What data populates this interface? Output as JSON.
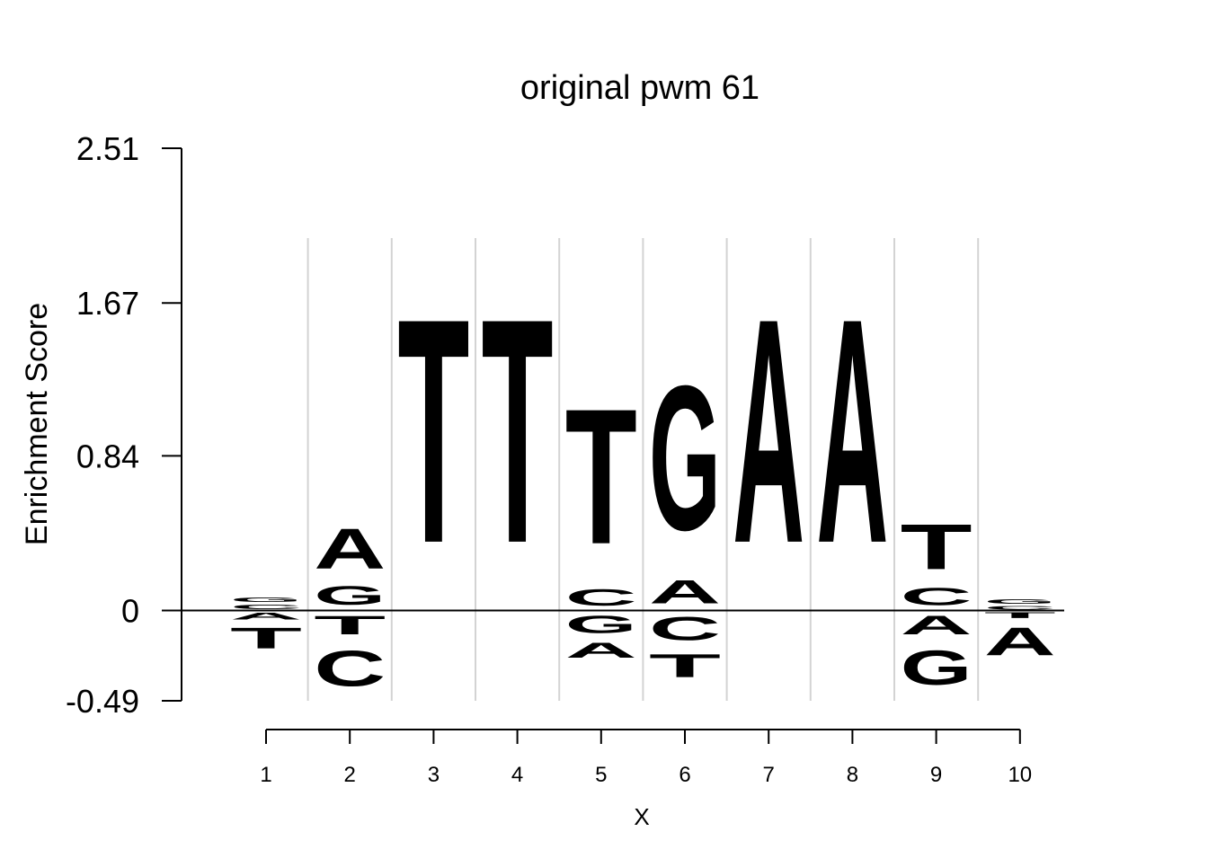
{
  "chart_data": {
    "type": "sequence-logo",
    "title": "original pwm 61",
    "xlabel": "X",
    "ylabel": "Enrichment Score",
    "positions": [
      "1",
      "2",
      "3",
      "4",
      "5",
      "6",
      "7",
      "8",
      "9",
      "10"
    ],
    "y_ticks": [
      "2.51",
      "1.67",
      "0.84",
      "0",
      "-0.49"
    ],
    "y_tick_values": [
      2.51,
      1.67,
      0.84,
      0,
      -0.49
    ],
    "ylim": [
      -0.49,
      2.51
    ],
    "grid": "vertical separators between positions",
    "colors": {
      "A": "#d7191c",
      "C": "#fdae61",
      "G": "#abdda4",
      "T": "#2b83ba"
    },
    "stacks": [
      {
        "position": "1",
        "above": [
          {
            "letter": "C",
            "h": 0.04
          },
          {
            "letter": "G",
            "h": 0.04
          }
        ],
        "below": [
          {
            "letter": "A",
            "h": 0.06
          },
          {
            "letter": "T",
            "h": 0.18
          }
        ]
      },
      {
        "position": "2",
        "above": [
          {
            "letter": "G",
            "h": 0.16
          },
          {
            "letter": "A",
            "h": 0.35
          }
        ],
        "below": [
          {
            "letter": "T",
            "h": 0.16
          },
          {
            "letter": "C",
            "h": 0.31
          }
        ]
      },
      {
        "position": "3",
        "above": [
          {
            "letter": "T",
            "h": 1.94
          }
        ],
        "below": []
      },
      {
        "position": "4",
        "above": [
          {
            "letter": "T",
            "h": 1.94
          }
        ],
        "below": []
      },
      {
        "position": "5",
        "above": [
          {
            "letter": "C",
            "h": 0.14
          },
          {
            "letter": "T",
            "h": 1.17
          }
        ],
        "below": [
          {
            "letter": "G",
            "h": 0.15
          },
          {
            "letter": "A",
            "h": 0.13
          }
        ]
      },
      {
        "position": "6",
        "above": [
          {
            "letter": "A",
            "h": 0.2
          },
          {
            "letter": "G",
            "h": 1.25
          }
        ],
        "below": [
          {
            "letter": "C",
            "h": 0.2
          },
          {
            "letter": "T",
            "h": 0.2
          }
        ]
      },
      {
        "position": "7",
        "above": [
          {
            "letter": "A",
            "h": 1.94
          }
        ],
        "below": []
      },
      {
        "position": "8",
        "above": [
          {
            "letter": "A",
            "h": 1.94
          }
        ],
        "below": []
      },
      {
        "position": "9",
        "above": [
          {
            "letter": "C",
            "h": 0.15
          },
          {
            "letter": "T",
            "h": 0.39
          }
        ],
        "below": [
          {
            "letter": "A",
            "h": 0.16
          },
          {
            "letter": "G",
            "h": 0.3
          }
        ]
      },
      {
        "position": "10",
        "above": [
          {
            "letter": "C",
            "h": 0.03
          },
          {
            "letter": "G",
            "h": 0.04
          }
        ],
        "below": [
          {
            "letter": "T",
            "h": 0.05
          },
          {
            "letter": "A",
            "h": 0.24
          }
        ]
      }
    ]
  }
}
